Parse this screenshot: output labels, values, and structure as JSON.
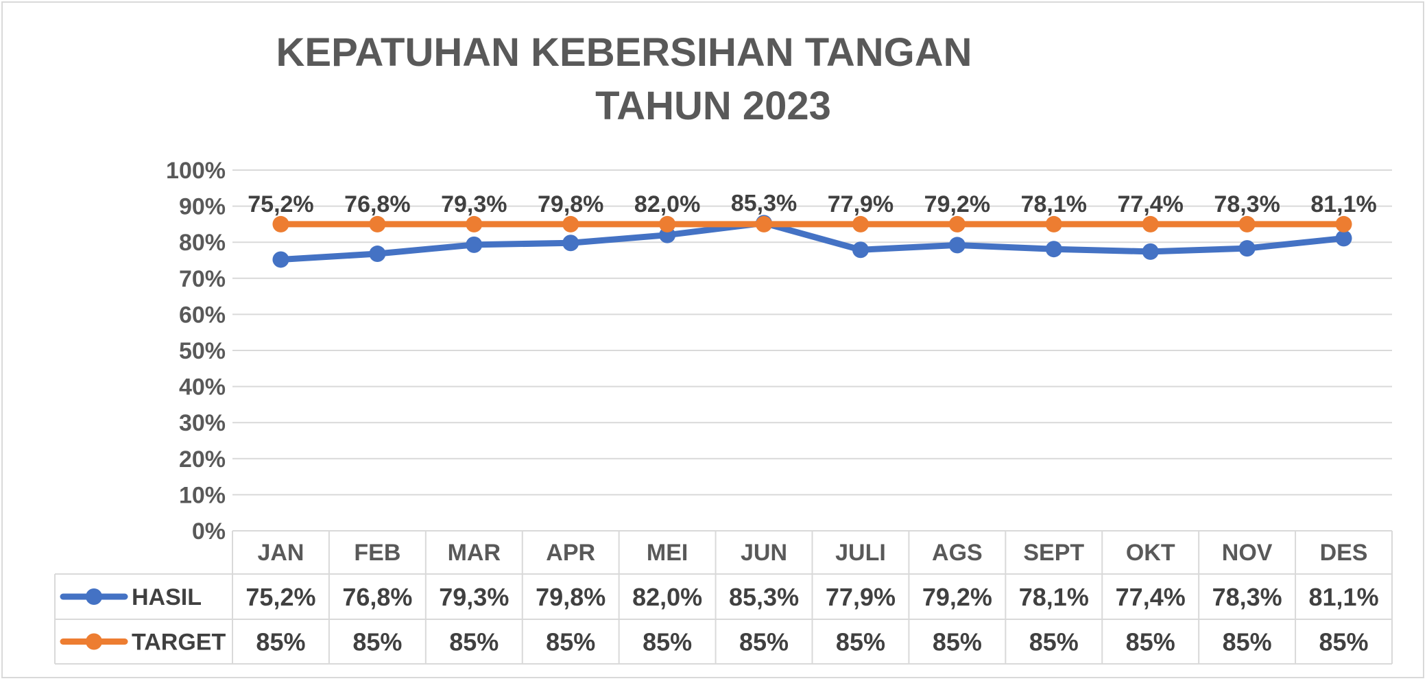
{
  "chart_data": {
    "type": "line",
    "title_lines": [
      "KEPATUHAN KEBERSIHAN TANGAN",
      "TAHUN 2023"
    ],
    "categories": [
      "JAN",
      "FEB",
      "MAR",
      "APR",
      "MEI",
      "JUN",
      "JULI",
      "AGS",
      "SEPT",
      "OKT",
      "NOV",
      "DES"
    ],
    "ylim": [
      0,
      100
    ],
    "yticks": [
      0,
      10,
      20,
      30,
      40,
      50,
      60,
      70,
      80,
      90,
      100
    ],
    "ytick_labels": [
      "0%",
      "10%",
      "20%",
      "30%",
      "40%",
      "50%",
      "60%",
      "70%",
      "80%",
      "90%",
      "100%"
    ],
    "grid": true,
    "legend": "data-table",
    "series": [
      {
        "name": "HASIL",
        "color": "#4472c4",
        "values": [
          75.2,
          76.8,
          79.3,
          79.8,
          82.0,
          85.3,
          77.9,
          79.2,
          78.1,
          77.4,
          78.3,
          81.1
        ],
        "labels": [
          "75,2%",
          "76,8%",
          "79,3%",
          "79,8%",
          "82,0%",
          "85,3%",
          "77,9%",
          "79,2%",
          "78,1%",
          "77,4%",
          "78,3%",
          "81,1%"
        ]
      },
      {
        "name": "TARGET",
        "color": "#ed7d31",
        "values": [
          85,
          85,
          85,
          85,
          85,
          85,
          85,
          85,
          85,
          85,
          85,
          85
        ],
        "labels": [
          "85%",
          "85%",
          "85%",
          "85%",
          "85%",
          "85%",
          "85%",
          "85%",
          "85%",
          "85%",
          "85%",
          "85%"
        ]
      }
    ]
  }
}
